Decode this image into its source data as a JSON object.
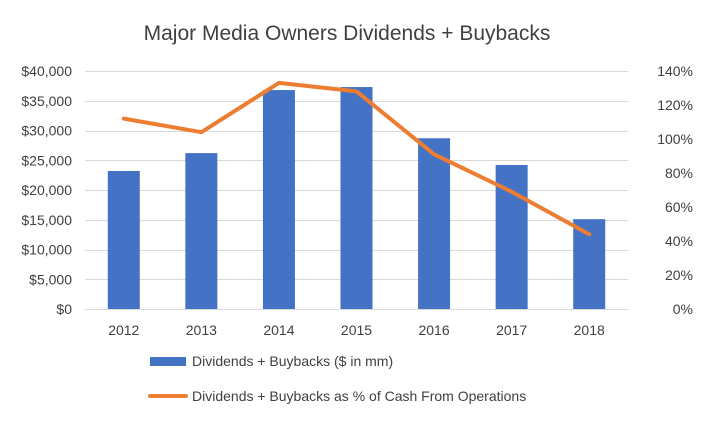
{
  "chart_data": {
    "type": "bar",
    "title": "Major Media Owners Dividends + Buybacks",
    "categories": [
      "2012",
      "2013",
      "2014",
      "2015",
      "2016",
      "2017",
      "2018"
    ],
    "series": [
      {
        "name": "Dividends + Buybacks ($ in mm)",
        "type": "bar",
        "axis": "left",
        "color": "#4472C4",
        "values": [
          23200,
          26200,
          36800,
          37300,
          28700,
          24200,
          15100
        ]
      },
      {
        "name": "Dividends + Buybacks as % of Cash From Operations",
        "type": "line",
        "axis": "right",
        "color": "#ED7D31",
        "values": [
          112,
          104,
          133,
          128,
          91,
          69,
          44
        ]
      }
    ],
    "left_axis": {
      "ylim": [
        0,
        40000
      ],
      "ticks": [
        0,
        5000,
        10000,
        15000,
        20000,
        25000,
        30000,
        35000,
        40000
      ],
      "tick_labels": [
        "$0",
        "$5,000",
        "$10,000",
        "$15,000",
        "$20,000",
        "$25,000",
        "$30,000",
        "$35,000",
        "$40,000"
      ]
    },
    "right_axis": {
      "ylim": [
        0,
        140
      ],
      "ticks": [
        0,
        20,
        40,
        60,
        80,
        100,
        120,
        140
      ],
      "tick_labels": [
        "0%",
        "20%",
        "40%",
        "60%",
        "80%",
        "100%",
        "120%",
        "140%"
      ]
    },
    "grid": true,
    "legend_position": "bottom"
  }
}
